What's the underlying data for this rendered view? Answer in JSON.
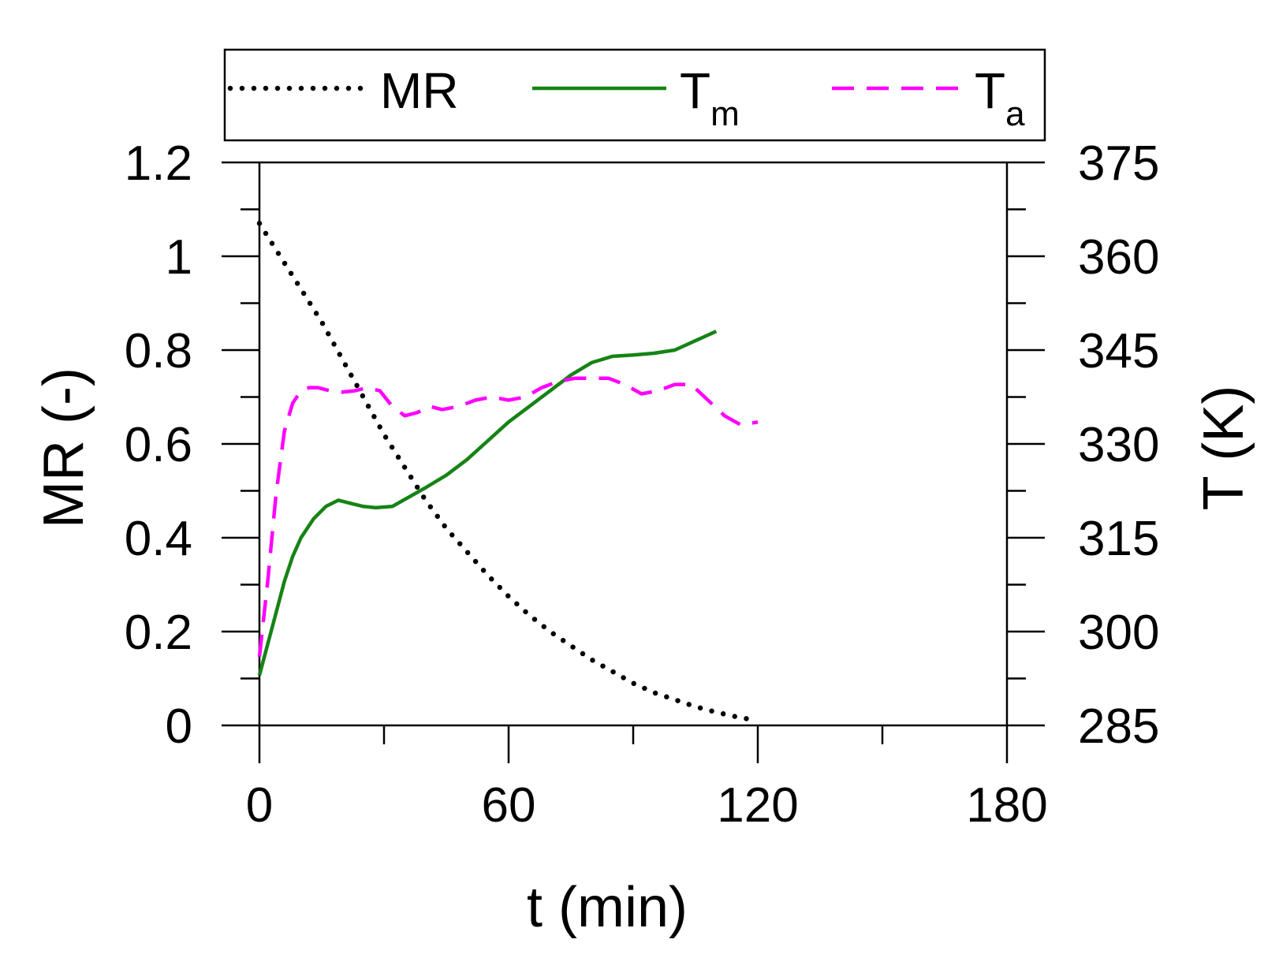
{
  "chart_data": {
    "type": "line",
    "title": "",
    "xlabel": "t (min)",
    "ylabel": "MR (-)",
    "y2label": "T (K)",
    "xlim": [
      0,
      180
    ],
    "ylim": [
      0,
      1.2
    ],
    "y2lim": [
      285,
      375
    ],
    "x_ticks": [
      0,
      60,
      120,
      180
    ],
    "x_tick_labels": [
      "0",
      "60",
      "120",
      "180"
    ],
    "y_ticks": [
      0,
      0.2,
      0.4,
      0.6,
      0.8,
      1,
      1.2
    ],
    "y_tick_labels": [
      "0",
      "0.2",
      "0.4",
      "0.6",
      "0.8",
      "1",
      "1.2"
    ],
    "y2_ticks": [
      285,
      300,
      315,
      330,
      345,
      360,
      375
    ],
    "y2_tick_labels": [
      "285",
      "300",
      "315",
      "330",
      "345",
      "360",
      "375"
    ],
    "grid": false,
    "legend_position": "top",
    "series": [
      {
        "name": "MR",
        "legend_main": "MR",
        "legend_sub": "",
        "axis": "left",
        "color": "#000000",
        "style": "dotted",
        "x": [
          0,
          5,
          10,
          15,
          20,
          25,
          30,
          35,
          40,
          45,
          50,
          55,
          60,
          65,
          70,
          75,
          80,
          85,
          90,
          95,
          100,
          105,
          110,
          115,
          120
        ],
        "y": [
          1.07,
          1.0,
          0.93,
          0.86,
          0.78,
          0.7,
          0.62,
          0.55,
          0.48,
          0.42,
          0.37,
          0.32,
          0.275,
          0.235,
          0.2,
          0.17,
          0.14,
          0.115,
          0.09,
          0.07,
          0.055,
          0.04,
          0.028,
          0.018,
          0.01
        ]
      },
      {
        "name": "Tm",
        "legend_main": "T",
        "legend_sub": "m",
        "axis": "right",
        "color": "#158315",
        "style": "solid",
        "x": [
          0,
          2,
          4,
          6,
          8,
          10,
          13,
          16,
          19,
          22,
          25,
          28,
          32,
          36,
          40,
          45,
          50,
          55,
          60,
          65,
          70,
          75,
          80,
          85,
          90,
          95,
          100,
          105,
          110
        ],
        "y": [
          293,
          298,
          303,
          308,
          312,
          315,
          318,
          320,
          321,
          320.5,
          320,
          319.8,
          320,
          321.5,
          323,
          325,
          327.5,
          330.5,
          333.5,
          336,
          338.5,
          341,
          343,
          344,
          344.2,
          344.5,
          345,
          346.5,
          348
        ]
      },
      {
        "name": "Ta",
        "legend_main": "T",
        "legend_sub": "a",
        "axis": "right",
        "color": "#ff00ff",
        "style": "dashed",
        "x": [
          0,
          2,
          4,
          6,
          8,
          10,
          12,
          14,
          17,
          20,
          23,
          26,
          29,
          32,
          35,
          38,
          41,
          44,
          48,
          52,
          56,
          60,
          64,
          68,
          72,
          76,
          80,
          84,
          88,
          92,
          96,
          100,
          104,
          108,
          112,
          116,
          120
        ],
        "y": [
          296,
          308,
          322,
          332,
          336.5,
          338.5,
          339,
          339,
          338.5,
          338.3,
          338.5,
          339,
          338.5,
          336,
          334.5,
          335,
          336,
          335.5,
          336,
          337,
          337.5,
          337,
          337.5,
          339,
          340,
          340.5,
          340.5,
          340.5,
          339.5,
          338,
          338.5,
          339.5,
          339.5,
          337,
          334.5,
          333,
          333.5
        ]
      }
    ]
  }
}
